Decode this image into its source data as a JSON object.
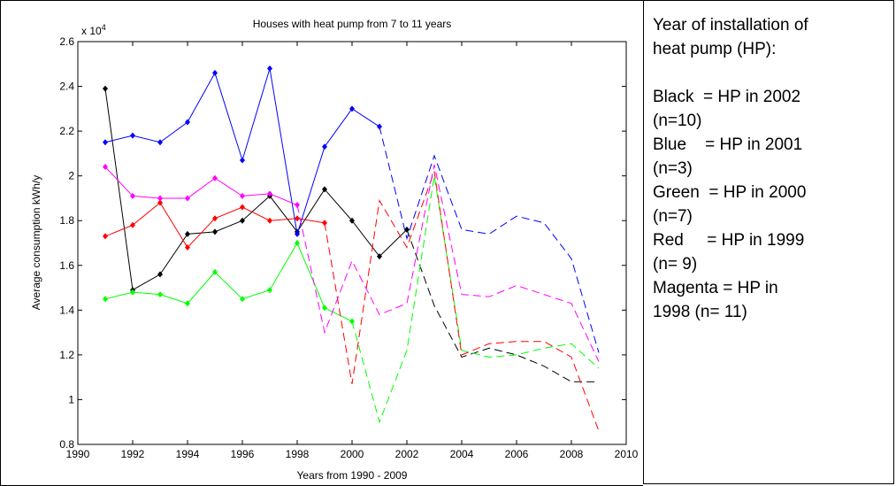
{
  "chart_data": {
    "type": "line",
    "title": "Houses with heat pump from 7 to 11 years",
    "xlabel": "Years from 1990 - 2009",
    "ylabel": "Average consumption kWh/y",
    "y_multiplier": {
      "base": "x 10",
      "exponent": "4"
    },
    "x": [
      1991,
      1992,
      1993,
      1994,
      1995,
      1996,
      1997,
      1998,
      1999,
      2000,
      2001,
      2002,
      2003,
      2004,
      2005,
      2006,
      2007,
      2008,
      2009
    ],
    "xlim": [
      1990,
      2010
    ],
    "xticks": [
      1990,
      1992,
      1994,
      1996,
      1998,
      2000,
      2002,
      2004,
      2006,
      2008,
      2010
    ],
    "ylim": [
      0.8,
      2.6
    ],
    "yticks": [
      0.8,
      1,
      1.2,
      1.4,
      1.6,
      1.8,
      2,
      2.2,
      2.4,
      2.6
    ],
    "grid": false,
    "series": [
      {
        "color": "#000000",
        "solid_until": 2002,
        "values": [
          2.39,
          1.49,
          1.56,
          1.74,
          1.75,
          1.8,
          1.91,
          1.75,
          1.94,
          1.8,
          1.64,
          1.76,
          1.42,
          1.19,
          1.23,
          1.2,
          1.15,
          1.08,
          1.08
        ]
      },
      {
        "color": "#0000ff",
        "solid_until": 2001,
        "values": [
          2.15,
          2.18,
          2.15,
          2.24,
          2.46,
          2.07,
          2.48,
          1.74,
          2.13,
          2.3,
          2.22,
          1.72,
          2.09,
          1.76,
          1.74,
          1.82,
          1.79,
          1.63,
          1.21
        ]
      },
      {
        "color": "#00ff00",
        "solid_until": 2000,
        "values": [
          1.45,
          1.48,
          1.47,
          1.43,
          1.57,
          1.45,
          1.49,
          1.7,
          1.41,
          1.35,
          0.9,
          1.22,
          2.0,
          1.22,
          1.19,
          1.2,
          1.23,
          1.25,
          1.14
        ]
      },
      {
        "color": "#ff0000",
        "solid_until": 1999,
        "values": [
          1.73,
          1.78,
          1.88,
          1.68,
          1.81,
          1.86,
          1.8,
          1.81,
          1.79,
          1.07,
          1.89,
          1.68,
          2.02,
          1.2,
          1.25,
          1.26,
          1.26,
          1.19,
          0.86
        ]
      },
      {
        "color": "#ff00ff",
        "solid_until": 1998,
        "values": [
          2.04,
          1.91,
          1.9,
          1.9,
          1.99,
          1.91,
          1.92,
          1.87,
          1.3,
          1.62,
          1.38,
          1.43,
          2.05,
          1.47,
          1.46,
          1.51,
          1.47,
          1.43,
          1.17
        ]
      }
    ]
  },
  "textbox": {
    "heading": [
      "Year of installation of",
      "heat pump (HP):"
    ],
    "lines": [
      "Black  = HP in 2002",
      "(n=10)",
      "Blue    = HP in 2001",
      "(n=3)",
      "Green  = HP in 2000",
      "(n=7)",
      "Red     = HP in 1999",
      "(n= 9)",
      "Magenta = HP in",
      "1998 (n= 11)"
    ]
  }
}
